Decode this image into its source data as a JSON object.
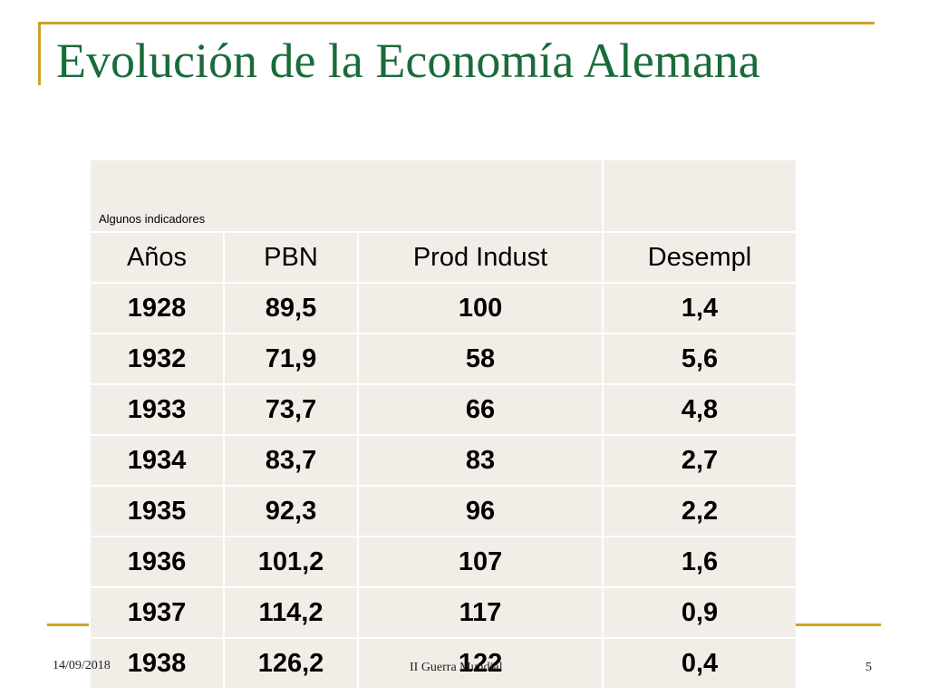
{
  "slide": {
    "title": "Evolución de la Economía Alemana"
  },
  "table": {
    "caption": "Algunos indicadores",
    "headers": [
      "Años",
      "PBN",
      "Prod Indust",
      "Desempl"
    ],
    "rows": [
      [
        "1928",
        "89,5",
        "100",
        "1,4"
      ],
      [
        "1932",
        "71,9",
        "58",
        "5,6"
      ],
      [
        "1933",
        "73,7",
        "66",
        "4,8"
      ],
      [
        "1934",
        "83,7",
        "83",
        "2,7"
      ],
      [
        "1935",
        "92,3",
        "96",
        "2,2"
      ],
      [
        "1936",
        "101,2",
        "107",
        "1,6"
      ],
      [
        "1937",
        "114,2",
        "117",
        "0,9"
      ],
      [
        "1938",
        "126,2",
        "122",
        "0,4"
      ]
    ]
  },
  "footer": {
    "date": "14/09/2018",
    "center": "II Guerra Mundial",
    "page": "5"
  },
  "colors": {
    "title": "#1a6b3a",
    "accent": "#c9a227",
    "table_bg": "#f3ede7"
  }
}
